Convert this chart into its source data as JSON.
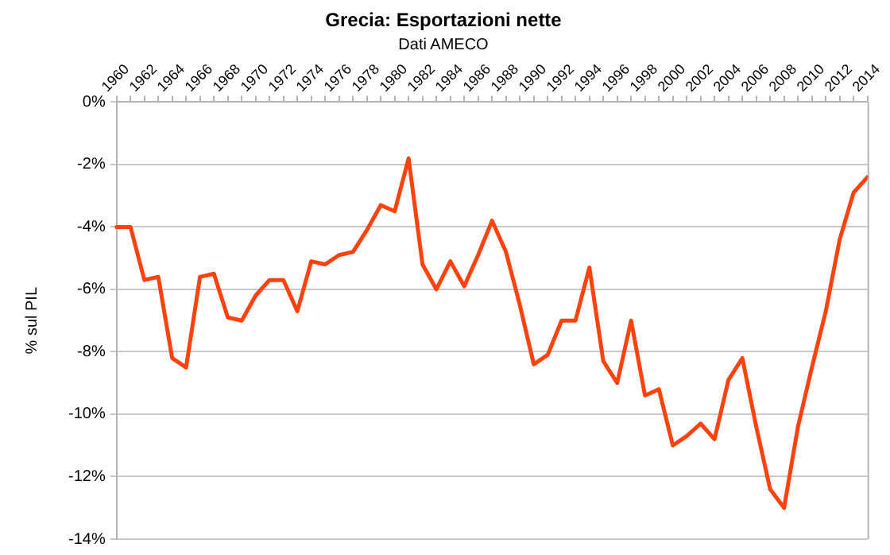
{
  "chart_data": {
    "type": "line",
    "title": "Grecia: Esportazioni nette",
    "subtitle": "Dati AMECO",
    "ylabel": "% sul PIL",
    "categories": [
      "1960",
      null,
      "1962",
      null,
      "1964",
      null,
      "1966",
      null,
      "1968",
      null,
      "1970",
      null,
      "1972",
      null,
      "1974",
      null,
      "1976",
      null,
      "1978",
      null,
      "1980",
      null,
      "1982",
      null,
      "1984",
      null,
      "1986",
      null,
      "1988",
      null,
      "1990",
      null,
      "1992",
      null,
      "1994",
      null,
      "1996",
      null,
      "1998",
      null,
      "2000",
      null,
      "2002",
      null,
      "2004",
      null,
      "2006",
      null,
      "2008",
      null,
      "2010",
      null,
      "2012",
      null,
      "2014"
    ],
    "series": [
      {
        "color": "#ff420e",
        "values": [
          -4.0,
          -4.0,
          -5.7,
          -5.6,
          -8.2,
          -8.5,
          -5.6,
          -5.5,
          -6.9,
          -7.0,
          -6.2,
          -5.7,
          -5.7,
          -6.7,
          -5.1,
          -5.2,
          -4.9,
          -4.8,
          -4.1,
          -3.3,
          -3.5,
          -1.8,
          -5.2,
          -6.0,
          -5.1,
          -5.9,
          -4.9,
          -3.8,
          -4.8,
          -6.5,
          -8.4,
          -8.1,
          -7.0,
          -7.0,
          -5.3,
          -8.3,
          -9.0,
          -7.0,
          -9.4,
          -9.2,
          -11.0,
          -10.7,
          -10.3,
          -10.8,
          -8.9,
          -8.2,
          -10.4,
          -12.4,
          -13.0,
          -10.4,
          -8.5,
          -6.7,
          -4.4,
          -2.9,
          -2.4
        ]
      }
    ],
    "ylim": [
      -14,
      0
    ],
    "yticks": [
      {
        "value": 0,
        "label": "0%"
      },
      {
        "value": -2,
        "label": "-2%"
      },
      {
        "value": -4,
        "label": "-4%"
      },
      {
        "value": -6,
        "label": "-6%"
      },
      {
        "value": -8,
        "label": "-8%"
      },
      {
        "value": -10,
        "label": "-10%"
      },
      {
        "value": -12,
        "label": "-12%"
      },
      {
        "value": -14,
        "label": "-14%"
      }
    ],
    "grid": "y",
    "legend": false,
    "marker": "none",
    "line_style": "solid"
  }
}
